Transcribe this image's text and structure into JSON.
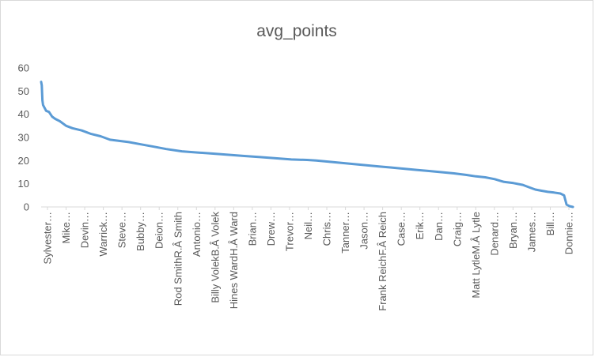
{
  "chart_data": {
    "type": "line",
    "title": "avg_points",
    "xlabel": "",
    "ylabel": "",
    "ylim": [
      0,
      60
    ],
    "yticks": [
      "0",
      "10",
      "20",
      "30",
      "40",
      "50",
      "60"
    ],
    "grid": false,
    "legend": "none",
    "x_tick_labels": [
      "Sylvester…",
      "Mike…",
      "Devin…",
      "Warrick…",
      "Steve…",
      "Bubby…",
      "Deion…",
      "Rod SmithR.Â Smith",
      "Antonio…",
      "Billy VolekB.Â Volek",
      "Hines WardH.Â Ward",
      "Brian…",
      "Drew…",
      "Trevor…",
      "Neil…",
      "Chris…",
      "Tanner…",
      "Jason…",
      "Frank ReichF.Â Reich",
      "Case…",
      "Erik…",
      "Dan…",
      "Craig…",
      "Matt LytleM.Â Lytle",
      "Denard…",
      "Bryan…",
      "James…",
      "Bill…",
      "Donnie…"
    ],
    "series": [
      {
        "color": "#5b9bd5",
        "profile": [
          [
            0.0,
            54.0
          ],
          [
            0.002,
            52.5
          ],
          [
            0.004,
            46.0
          ],
          [
            0.006,
            44.0
          ],
          [
            0.01,
            43.0
          ],
          [
            0.016,
            41.5
          ],
          [
            0.025,
            41.0
          ],
          [
            0.035,
            39.0
          ],
          [
            0.045,
            38.0
          ],
          [
            0.06,
            37.0
          ],
          [
            0.08,
            35.0
          ],
          [
            0.1,
            34.0
          ],
          [
            0.13,
            33.0
          ],
          [
            0.16,
            31.5
          ],
          [
            0.19,
            30.5
          ],
          [
            0.22,
            29.0
          ],
          [
            0.25,
            28.5
          ],
          [
            0.28,
            28.0
          ],
          [
            0.32,
            27.0
          ],
          [
            0.36,
            26.0
          ],
          [
            0.4,
            25.0
          ],
          [
            0.45,
            24.0
          ],
          [
            0.5,
            23.5
          ],
          [
            0.55,
            23.0
          ],
          [
            0.6,
            22.5
          ],
          [
            0.65,
            22.0
          ],
          [
            0.7,
            21.5
          ],
          [
            0.75,
            21.0
          ],
          [
            0.8,
            20.5
          ],
          [
            0.85,
            20.3
          ],
          [
            0.88,
            20.0
          ],
          [
            0.92,
            19.5
          ],
          [
            0.96,
            19.0
          ],
          [
            1.0,
            18.5
          ],
          [
            1.04,
            18.0
          ],
          [
            1.08,
            17.5
          ],
          [
            1.12,
            17.0
          ],
          [
            1.16,
            16.5
          ],
          [
            1.2,
            16.0
          ],
          [
            1.24,
            15.5
          ],
          [
            1.28,
            15.0
          ],
          [
            1.32,
            14.5
          ],
          [
            1.36,
            13.8
          ],
          [
            1.39,
            13.2
          ],
          [
            1.42,
            12.8
          ],
          [
            1.45,
            12.0
          ],
          [
            1.48,
            10.8
          ],
          [
            1.51,
            10.3
          ],
          [
            1.54,
            9.5
          ],
          [
            1.56,
            8.5
          ],
          [
            1.58,
            7.5
          ],
          [
            1.6,
            7.0
          ],
          [
            1.62,
            6.5
          ],
          [
            1.64,
            6.2
          ],
          [
            1.66,
            5.8
          ],
          [
            1.672,
            5.0
          ],
          [
            1.68,
            1.0
          ],
          [
            1.69,
            0.3
          ],
          [
            1.7,
            0.0
          ]
        ]
      }
    ]
  }
}
